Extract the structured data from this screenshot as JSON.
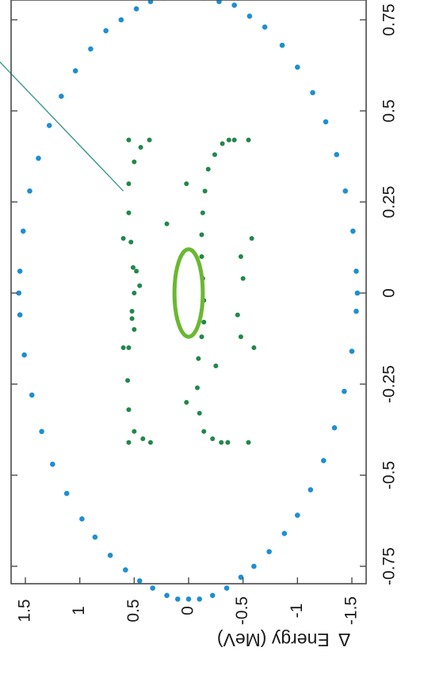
{
  "chart_data": {
    "type": "scatter",
    "title": "",
    "orientation": "rotated",
    "xlabel": "",
    "ylabel": "Δ Energy (MeV)",
    "ylabel_symbol": "Δ",
    "ylabel_text": "Energy (MeV)",
    "xlim": [
      -0.95,
      0.95
    ],
    "ylim": [
      -1.65,
      1.65
    ],
    "x_ticks": [
      -0.75,
      -0.5,
      -0.25,
      0,
      0.25,
      0.5,
      0.75
    ],
    "x_tick_labels": [
      "-0.75",
      "-0.5",
      "-0.25",
      "0",
      "0.25",
      "0.5",
      "0.75"
    ],
    "y_ticks": [
      1.5,
      1,
      0.5,
      0,
      -0.5,
      -1,
      -1.5
    ],
    "y_tick_labels": [
      "1.5",
      "1",
      "0.5",
      "0",
      "-0.5",
      "-1",
      "-1.5"
    ],
    "grid": false,
    "colors": {
      "outer": "#1e8fd0",
      "middle": "#22874a",
      "inner": "#6ab830",
      "pointer": "#3a9a8a",
      "frame": "#4a4a4a"
    },
    "series": [
      {
        "kind": "ring",
        "color": "#1e8fd0",
        "points": [
          [
            -0.84,
            0.0
          ],
          [
            -0.84,
            0.1
          ],
          [
            -0.84,
            -0.1
          ],
          [
            -0.83,
            0.2
          ],
          [
            -0.83,
            -0.22
          ],
          [
            -0.81,
            0.33
          ],
          [
            -0.81,
            -0.35
          ],
          [
            -0.79,
            0.45
          ],
          [
            -0.78,
            -0.48
          ],
          [
            -0.76,
            0.58
          ],
          [
            -0.75,
            -0.6
          ],
          [
            -0.72,
            0.72
          ],
          [
            -0.71,
            -0.74
          ],
          [
            -0.67,
            0.86
          ],
          [
            -0.66,
            -0.88
          ],
          [
            -0.62,
            0.98
          ],
          [
            -0.61,
            -1.0
          ],
          [
            -0.55,
            1.12
          ],
          [
            -0.54,
            -1.12
          ],
          [
            -0.47,
            1.25
          ],
          [
            -0.46,
            -1.24
          ],
          [
            -0.38,
            1.35
          ],
          [
            -0.37,
            -1.34
          ],
          [
            -0.28,
            1.44
          ],
          [
            -0.27,
            -1.43
          ],
          [
            -0.17,
            1.51
          ],
          [
            -0.16,
            -1.5
          ],
          [
            -0.06,
            1.55
          ],
          [
            -0.05,
            -1.54
          ],
          [
            0.0,
            1.56
          ],
          [
            0.0,
            -1.55
          ],
          [
            0.06,
            1.55
          ],
          [
            0.06,
            -1.54
          ],
          [
            0.17,
            1.52
          ],
          [
            0.17,
            -1.51
          ],
          [
            0.28,
            1.46
          ],
          [
            0.28,
            -1.44
          ],
          [
            0.37,
            1.38
          ],
          [
            0.38,
            -1.36
          ],
          [
            0.46,
            1.28
          ],
          [
            0.47,
            -1.26
          ],
          [
            0.54,
            1.17
          ],
          [
            0.55,
            -1.14
          ],
          [
            0.61,
            1.04
          ],
          [
            0.62,
            -1.0
          ],
          [
            0.67,
            0.9
          ],
          [
            0.68,
            -0.86
          ],
          [
            0.72,
            0.76
          ],
          [
            0.73,
            -0.7
          ],
          [
            0.75,
            0.62
          ],
          [
            0.76,
            -0.56
          ],
          [
            0.78,
            0.48
          ],
          [
            0.79,
            -0.42
          ],
          [
            0.8,
            0.35
          ],
          [
            0.8,
            -0.28
          ],
          [
            0.81,
            0.22
          ],
          [
            0.81,
            -0.14
          ],
          [
            0.82,
            0.1
          ],
          [
            0.82,
            0.0
          ],
          [
            0.83,
            0.05
          ],
          [
            0.82,
            -0.05
          ]
        ]
      },
      {
        "kind": "ring",
        "color": "#22874a",
        "points": [
          [
            -0.41,
            -0.36
          ],
          [
            -0.41,
            -0.3
          ],
          [
            -0.4,
            -0.22
          ],
          [
            -0.38,
            -0.14
          ],
          [
            -0.33,
            -0.1
          ],
          [
            -0.26,
            -0.08
          ],
          [
            -0.18,
            -0.09
          ],
          [
            -0.12,
            -0.12
          ],
          [
            -0.08,
            -0.14
          ],
          [
            -0.02,
            -0.14
          ],
          [
            0.04,
            -0.13
          ],
          [
            0.1,
            -0.12
          ],
          [
            0.16,
            -0.12
          ],
          [
            0.22,
            -0.13
          ],
          [
            0.28,
            -0.15
          ],
          [
            0.34,
            -0.18
          ],
          [
            0.38,
            -0.24
          ],
          [
            0.41,
            -0.31
          ],
          [
            0.42,
            -0.37
          ],
          [
            0.42,
            -0.42
          ],
          [
            -0.41,
            0.35
          ],
          [
            -0.4,
            0.42
          ],
          [
            -0.38,
            0.5
          ],
          [
            -0.32,
            0.55
          ],
          [
            -0.24,
            0.56
          ],
          [
            -0.15,
            0.55
          ],
          [
            -0.07,
            0.52
          ],
          [
            0.0,
            0.5
          ],
          [
            0.07,
            0.51
          ],
          [
            0.14,
            0.53
          ],
          [
            0.22,
            0.55
          ],
          [
            0.3,
            0.55
          ],
          [
            0.36,
            0.5
          ],
          [
            0.4,
            0.44
          ],
          [
            0.42,
            0.36
          ],
          [
            -0.41,
            0.55
          ],
          [
            -0.41,
            -0.55
          ],
          [
            0.42,
            0.55
          ],
          [
            0.42,
            -0.55
          ],
          [
            -0.3,
            0.02
          ],
          [
            0.3,
            0.02
          ],
          [
            0.19,
            0.2
          ],
          [
            -0.2,
            -0.25
          ],
          [
            -0.1,
            0.5
          ],
          [
            -0.05,
            0.52
          ],
          [
            0.02,
            0.45
          ],
          [
            0.06,
            0.48
          ],
          [
            -0.12,
            -0.48
          ],
          [
            -0.06,
            -0.45
          ],
          [
            0.04,
            -0.5
          ],
          [
            0.1,
            -0.48
          ],
          [
            -0.15,
            0.6
          ],
          [
            0.15,
            0.6
          ],
          [
            -0.15,
            -0.6
          ],
          [
            0.15,
            -0.58
          ]
        ]
      },
      {
        "kind": "ellipse",
        "color": "#6ab830",
        "center": [
          0.0,
          0.0
        ],
        "rx": 0.12,
        "ry": 0.13
      }
    ],
    "annotations": [
      {
        "kind": "pointer-line",
        "text": "",
        "from": [
          0.78,
          2.2
        ],
        "to": [
          0.28,
          0.6
        ]
      }
    ]
  }
}
